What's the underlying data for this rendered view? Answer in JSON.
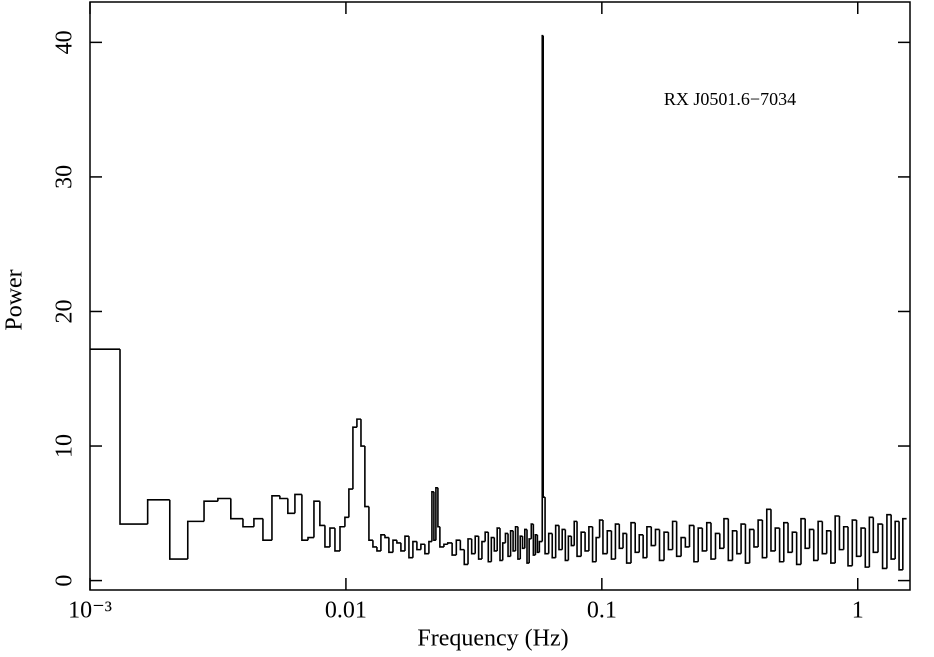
{
  "chart_data": {
    "type": "step",
    "annotation": "RX J0501.6−7034",
    "xlabel": "Frequency (Hz)",
    "ylabel": "Power",
    "xscale": "log",
    "color": "#000000",
    "xlim": [
      0.001,
      1.6
    ],
    "ylim": [
      -0.7,
      43
    ],
    "xticks": [
      {
        "value": 0.001,
        "label": "10⁻³"
      },
      0.01,
      0.1,
      1
    ],
    "yticks": [
      0,
      10,
      20,
      30,
      40
    ],
    "x": [
      0.001,
      0.00131,
      0.00168,
      0.00205,
      0.00241,
      0.00279,
      0.00316,
      0.00355,
      0.00396,
      0.00437,
      0.00474,
      0.00514,
      0.00552,
      0.00593,
      0.00632,
      0.00673,
      0.00711,
      0.0075,
      0.00791,
      0.00828,
      0.00866,
      0.00906,
      0.00948,
      0.00991,
      0.01027,
      0.01065,
      0.01104,
      0.01145,
      0.01186,
      0.0123,
      0.01275,
      0.01322,
      0.0137,
      0.01421,
      0.01472,
      0.01527,
      0.01582,
      0.0164,
      0.01701,
      0.01763,
      0.01827,
      0.01894,
      0.01963,
      0.02035,
      0.0211,
      0.02168,
      0.02207,
      0.02247,
      0.02288,
      0.02329,
      0.02415,
      0.025,
      0.026,
      0.027,
      0.028,
      0.029,
      0.03,
      0.031,
      0.032,
      0.033,
      0.034,
      0.035,
      0.036,
      0.037,
      0.038,
      0.039,
      0.04,
      0.041,
      0.042,
      0.043,
      0.044,
      0.045,
      0.046,
      0.047,
      0.048,
      0.049,
      0.05,
      0.051,
      0.052,
      0.053,
      0.054,
      0.055,
      0.056,
      0.057,
      0.0585,
      0.059,
      0.06,
      0.062,
      0.064,
      0.066,
      0.068,
      0.07,
      0.072,
      0.074,
      0.076,
      0.078,
      0.08,
      0.083,
      0.086,
      0.089,
      0.092,
      0.095,
      0.098,
      0.101,
      0.105,
      0.109,
      0.113,
      0.117,
      0.121,
      0.125,
      0.13,
      0.135,
      0.14,
      0.145,
      0.15,
      0.156,
      0.162,
      0.168,
      0.175,
      0.182,
      0.189,
      0.196,
      0.204,
      0.212,
      0.22,
      0.229,
      0.238,
      0.247,
      0.257,
      0.267,
      0.278,
      0.289,
      0.3,
      0.312,
      0.324,
      0.337,
      0.35,
      0.364,
      0.378,
      0.393,
      0.408,
      0.424,
      0.441,
      0.458,
      0.476,
      0.495,
      0.514,
      0.534,
      0.555,
      0.577,
      0.6,
      0.623,
      0.648,
      0.673,
      0.7,
      0.727,
      0.756,
      0.785,
      0.816,
      0.848,
      0.881,
      0.916,
      0.952,
      0.989,
      1.03,
      1.07,
      1.11,
      1.15,
      1.2,
      1.25,
      1.3,
      1.35,
      1.4,
      1.45,
      1.5
    ],
    "values": [
      17.2,
      4.2,
      6.0,
      1.6,
      4.4,
      5.9,
      6.1,
      4.6,
      4.0,
      4.6,
      3.0,
      6.3,
      6.1,
      5.0,
      6.4,
      3.0,
      3.2,
      5.9,
      4.1,
      2.5,
      3.9,
      2.2,
      4.0,
      4.7,
      6.8,
      11.4,
      12.0,
      10.0,
      5.5,
      3.0,
      2.5,
      2.2,
      3.4,
      3.2,
      2.1,
      3.0,
      2.8,
      2.2,
      3.3,
      1.7,
      2.9,
      2.3,
      2.7,
      2.0,
      2.9,
      6.6,
      3.0,
      6.9,
      4.0,
      2.5,
      2.7,
      2.8,
      1.9,
      3.0,
      2.3,
      1.2,
      3.1,
      2.0,
      3.3,
      1.6,
      2.9,
      3.6,
      1.4,
      3.2,
      2.2,
      3.9,
      1.5,
      2.8,
      3.5,
      1.8,
      3.7,
      2.2,
      4.0,
      1.6,
      3.3,
      2.4,
      3.8,
      1.3,
      3.1,
      4.2,
      1.9,
      3.4,
      2.1,
      2.9,
      40.5,
      6.2,
      2.0,
      3.5,
      1.7,
      4.1,
      2.3,
      3.8,
      1.5,
      3.3,
      2.6,
      4.4,
      1.8,
      3.6,
      2.2,
      4.0,
      1.4,
      3.2,
      4.5,
      2.0,
      3.7,
      1.6,
      4.2,
      2.4,
      3.5,
      1.3,
      4.3,
      2.1,
      3.4,
      1.7,
      4.0,
      2.6,
      3.8,
      1.5,
      3.6,
      2.3,
      4.4,
      1.8,
      3.2,
      2.5,
      4.1,
      1.4,
      3.9,
      2.2,
      4.3,
      1.6,
      3.5,
      2.4,
      4.6,
      1.5,
      3.7,
      2.0,
      4.2,
      1.3,
      3.8,
      2.5,
      4.5,
      1.7,
      5.3,
      2.2,
      3.9,
      1.4,
      4.3,
      2.1,
      3.6,
      1.2,
      4.6,
      2.4,
      3.8,
      1.5,
      4.4,
      2.0,
      3.7,
      1.3,
      4.8,
      2.3,
      4.0,
      1.1,
      4.5,
      1.8,
      3.9,
      1.0,
      4.7,
      2.1,
      4.2,
      0.9,
      4.9,
      1.6,
      4.4,
      0.8,
      4.6
    ]
  }
}
